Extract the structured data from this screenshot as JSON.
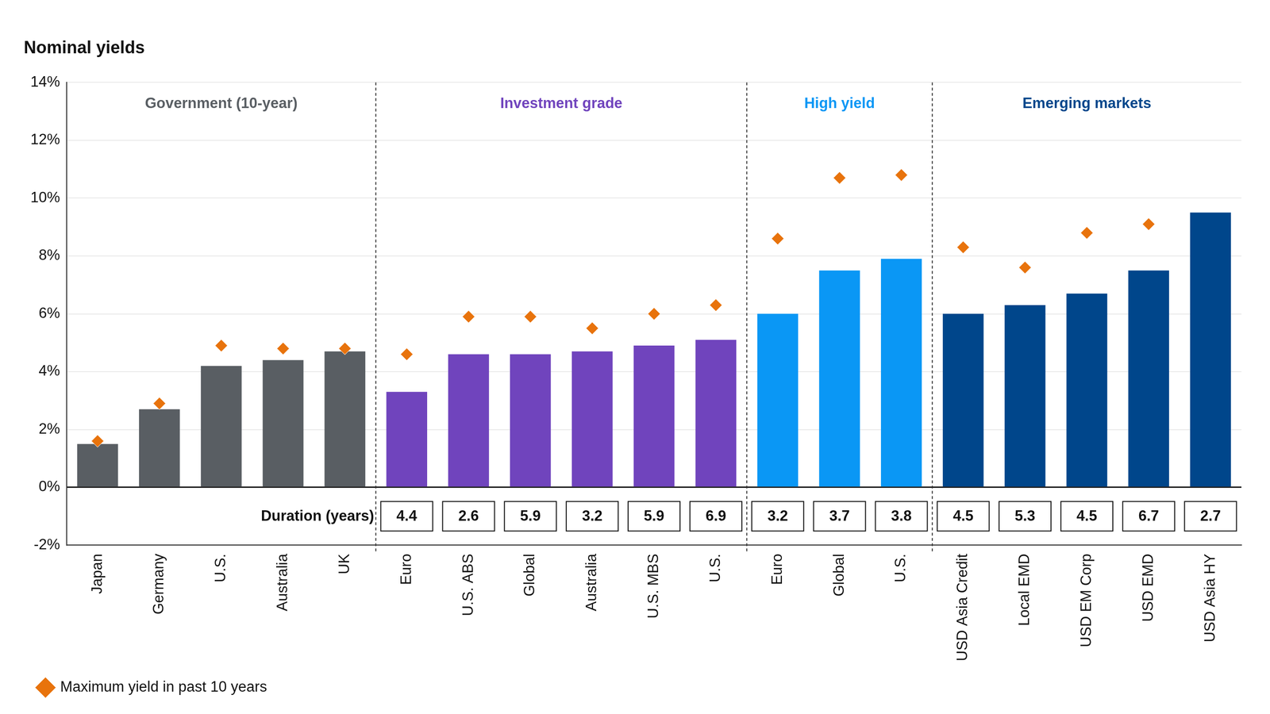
{
  "chart_data": {
    "type": "bar",
    "title": "Nominal yields",
    "categories": [
      "Japan",
      "Germany",
      "U.S.",
      "Australia",
      "UK",
      "Euro",
      "U.S. ABS",
      "Global",
      "Australia",
      "U.S. MBS",
      "U.S.",
      "Euro",
      "Global",
      "U.S.",
      "USD Asia Credit",
      "Local EMD",
      "USD EM Corp",
      "USD EMD",
      "USD Asia HY"
    ],
    "groups": [
      {
        "label": "Government (10-year)",
        "color": "#595e63",
        "count": 5
      },
      {
        "label": "Investment grade",
        "color": "#7044bd",
        "count": 6
      },
      {
        "label": "High yield",
        "color": "#0a97f5",
        "count": 3
      },
      {
        "label": "Emerging markets",
        "color": "#00468b",
        "count": 5
      }
    ],
    "series": [
      {
        "type": "bar",
        "values": [
          1.5,
          2.7,
          4.2,
          4.4,
          4.7,
          3.3,
          4.6,
          4.6,
          4.7,
          4.9,
          5.1,
          6.0,
          7.5,
          7.9,
          6.0,
          6.3,
          6.7,
          7.5,
          9.5
        ]
      },
      {
        "name": "Maximum yield in past 10 years",
        "type": "scatter",
        "marker": "diamond",
        "color": "#e8730c",
        "values": [
          1.6,
          2.9,
          4.9,
          4.8,
          4.8,
          4.6,
          5.9,
          5.9,
          5.5,
          6.0,
          6.3,
          8.6,
          10.7,
          10.8,
          8.3,
          7.6,
          8.8,
          9.1,
          null
        ]
      }
    ],
    "duration": {
      "label": "Duration (years)",
      "values": [
        null,
        null,
        null,
        null,
        null,
        4.4,
        2.6,
        5.9,
        3.2,
        5.9,
        6.9,
        3.2,
        3.7,
        3.8,
        4.5,
        5.3,
        4.5,
        6.7,
        2.7
      ]
    },
    "ylim": [
      -2,
      14
    ],
    "yticks": [
      {
        "value": -2,
        "label": "-2%"
      },
      {
        "value": 0,
        "label": "0%"
      },
      {
        "value": 2,
        "label": "2%"
      },
      {
        "value": 4,
        "label": "4%"
      },
      {
        "value": 6,
        "label": "6%"
      },
      {
        "value": 8,
        "label": "8%"
      },
      {
        "value": 10,
        "label": "10%"
      },
      {
        "value": 12,
        "label": "12%"
      },
      {
        "value": 14,
        "label": "14%"
      }
    ],
    "grid": true,
    "legend": "lower left"
  }
}
